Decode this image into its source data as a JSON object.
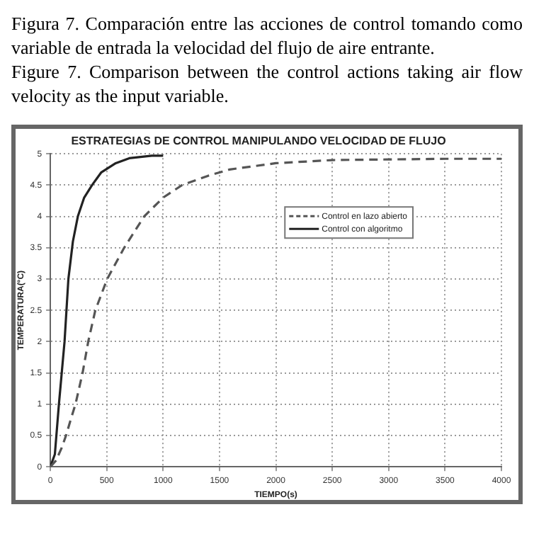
{
  "chart_data": {
    "type": "line",
    "title": "ESTRATEGIAS DE CONTROL MANIPULANDO VELOCIDAD DE FLUJO",
    "xlabel": "TIEMPO(s)",
    "ylabel": "TEMPERATURA(°C)",
    "annotations": [
      "Figura 7. Comparación entre las acciones de control tomando como variable de entrada la velocidad del flujo de aire entrante.",
      "Figure 7. Comparison between the control actions taking air flow velocity as the input variable."
    ],
    "xlim": [
      0,
      4000
    ],
    "xticks": [
      0,
      500,
      1000,
      1500,
      2000,
      2500,
      3000,
      3500,
      4000
    ],
    "ylim": [
      0,
      5
    ],
    "yticks": [
      0,
      0.5,
      1,
      1.5,
      2,
      2.5,
      3,
      3.5,
      4,
      4.5,
      5
    ],
    "grid": true,
    "legend": "top right",
    "marker": "none",
    "series": [
      {
        "name": "Control en lazo abierto",
        "color": "#555555",
        "line_style": "dashed",
        "x": [
          0,
          50,
          100,
          139,
          180,
          223,
          286,
          336,
          399,
          504,
          655,
          832,
          1000,
          1168,
          1400,
          1590,
          2000,
          2500,
          3000,
          3500,
          4000
        ],
        "values": [
          0,
          0.1,
          0.3,
          0.5,
          0.75,
          1,
          1.5,
          2,
          2.5,
          3,
          3.5,
          4,
          4.3,
          4.5,
          4.65,
          4.75,
          4.85,
          4.9,
          4.91,
          4.92,
          4.92
        ]
      },
      {
        "name": "Control con algoritmo",
        "color": "#222222",
        "line_style": "solid",
        "x": [
          0,
          40,
          76,
          126,
          160,
          200,
          244,
          300,
          370,
          450,
          580,
          700,
          900,
          1000
        ],
        "values": [
          0,
          0.2,
          1,
          2,
          3,
          3.6,
          4,
          4.3,
          4.5,
          4.7,
          4.85,
          4.93,
          4.97,
          4.97
        ]
      }
    ]
  }
}
